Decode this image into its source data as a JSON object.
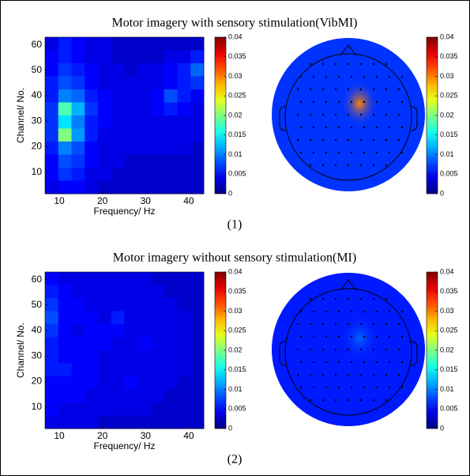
{
  "chart_data": [
    {
      "type": "heatmap",
      "title": "Motor imagery with sensory stimulation(VibMI)",
      "caption": "(1)",
      "x_label": "Frequency/ Hz",
      "y_label": "Channel/ No.",
      "xlim": [
        6.7,
        43.5
      ],
      "ylim": [
        1.5,
        63
      ],
      "xticks": [
        10,
        20,
        30,
        40
      ],
      "yticks": [
        10,
        20,
        30,
        40,
        50,
        60
      ],
      "values": [
        [
          0.004,
          0.006,
          0.005,
          0.004,
          0.004,
          0.003,
          0.003,
          0.003,
          0.003,
          0.003,
          0.003,
          0.003
        ],
        [
          0.005,
          0.006,
          0.005,
          0.004,
          0.004,
          0.003,
          0.003,
          0.003,
          0.003,
          0.004,
          0.004,
          0.006
        ],
        [
          0.005,
          0.007,
          0.006,
          0.005,
          0.004,
          0.004,
          0.003,
          0.004,
          0.004,
          0.005,
          0.006,
          0.009
        ],
        [
          0.006,
          0.008,
          0.007,
          0.005,
          0.004,
          0.004,
          0.004,
          0.004,
          0.004,
          0.005,
          0.006,
          0.007
        ],
        [
          0.006,
          0.01,
          0.009,
          0.006,
          0.005,
          0.004,
          0.004,
          0.004,
          0.005,
          0.008,
          0.006,
          0.005
        ],
        [
          0.007,
          0.018,
          0.012,
          0.007,
          0.005,
          0.004,
          0.004,
          0.004,
          0.005,
          0.006,
          0.005,
          0.004
        ],
        [
          0.007,
          0.014,
          0.01,
          0.006,
          0.005,
          0.004,
          0.004,
          0.004,
          0.004,
          0.004,
          0.004,
          0.004
        ],
        [
          0.007,
          0.02,
          0.011,
          0.006,
          0.004,
          0.004,
          0.004,
          0.004,
          0.004,
          0.004,
          0.004,
          0.004
        ],
        [
          0.006,
          0.01,
          0.008,
          0.005,
          0.004,
          0.004,
          0.004,
          0.004,
          0.004,
          0.004,
          0.004,
          0.003
        ],
        [
          0.005,
          0.008,
          0.007,
          0.005,
          0.004,
          0.004,
          0.003,
          0.003,
          0.003,
          0.003,
          0.003,
          0.003
        ],
        [
          0.005,
          0.007,
          0.006,
          0.004,
          0.004,
          0.003,
          0.003,
          0.003,
          0.003,
          0.003,
          0.003,
          0.003
        ],
        [
          0.004,
          0.005,
          0.005,
          0.004,
          0.003,
          0.003,
          0.003,
          0.003,
          0.003,
          0.003,
          0.003,
          0.003
        ]
      ],
      "colorbar": {
        "lim": [
          0,
          0.04
        ],
        "ticks": [
          0,
          0.005,
          0.01,
          0.015,
          0.02,
          0.025,
          0.03,
          0.035,
          0.04
        ]
      }
    },
    {
      "type": "topoplot",
      "base": 0.007,
      "peak": 0.03,
      "colorbar": {
        "lim": [
          0,
          0.04
        ],
        "ticks": [
          0,
          0.005,
          0.01,
          0.015,
          0.02,
          0.025,
          0.03,
          0.035,
          0.04
        ]
      }
    },
    {
      "type": "heatmap",
      "title": "Motor imagery without sensory stimulation(MI)",
      "caption": "(2)",
      "x_label": "Frequency/ Hz",
      "y_label": "Channel/ No.",
      "xlim": [
        6.7,
        43.5
      ],
      "ylim": [
        1.5,
        63
      ],
      "xticks": [
        10,
        20,
        30,
        40
      ],
      "yticks": [
        10,
        20,
        30,
        40,
        50,
        60
      ],
      "values": [
        [
          0.005,
          0.004,
          0.004,
          0.004,
          0.004,
          0.004,
          0.004,
          0.004,
          0.003,
          0.003,
          0.003,
          0.003
        ],
        [
          0.006,
          0.005,
          0.004,
          0.004,
          0.004,
          0.004,
          0.004,
          0.004,
          0.004,
          0.003,
          0.003,
          0.003
        ],
        [
          0.007,
          0.005,
          0.005,
          0.004,
          0.004,
          0.004,
          0.004,
          0.004,
          0.004,
          0.004,
          0.003,
          0.003
        ],
        [
          0.008,
          0.005,
          0.005,
          0.005,
          0.004,
          0.006,
          0.004,
          0.004,
          0.004,
          0.004,
          0.004,
          0.003
        ],
        [
          0.007,
          0.005,
          0.004,
          0.005,
          0.005,
          0.005,
          0.004,
          0.004,
          0.004,
          0.004,
          0.004,
          0.003
        ],
        [
          0.006,
          0.005,
          0.005,
          0.005,
          0.005,
          0.004,
          0.004,
          0.005,
          0.004,
          0.004,
          0.004,
          0.003
        ],
        [
          0.006,
          0.005,
          0.005,
          0.005,
          0.004,
          0.004,
          0.004,
          0.004,
          0.004,
          0.004,
          0.004,
          0.003
        ],
        [
          0.006,
          0.006,
          0.005,
          0.005,
          0.004,
          0.004,
          0.004,
          0.004,
          0.004,
          0.004,
          0.004,
          0.003
        ],
        [
          0.005,
          0.005,
          0.005,
          0.005,
          0.004,
          0.004,
          0.005,
          0.004,
          0.004,
          0.004,
          0.003,
          0.003
        ],
        [
          0.005,
          0.005,
          0.005,
          0.004,
          0.004,
          0.004,
          0.004,
          0.004,
          0.004,
          0.003,
          0.003,
          0.003
        ],
        [
          0.005,
          0.004,
          0.004,
          0.004,
          0.004,
          0.004,
          0.004,
          0.004,
          0.003,
          0.003,
          0.003,
          0.003
        ],
        [
          0.004,
          0.004,
          0.004,
          0.004,
          0.003,
          0.003,
          0.003,
          0.003,
          0.003,
          0.003,
          0.003,
          0.003
        ]
      ],
      "colorbar": {
        "lim": [
          0,
          0.04
        ],
        "ticks": [
          0,
          0.005,
          0.01,
          0.015,
          0.02,
          0.025,
          0.03,
          0.035,
          0.04
        ]
      }
    },
    {
      "type": "topoplot",
      "base": 0.006,
      "peak": 0.009,
      "colorbar": {
        "lim": [
          0,
          0.04
        ],
        "ticks": [
          0,
          0.005,
          0.01,
          0.015,
          0.02,
          0.025,
          0.03,
          0.035,
          0.04
        ]
      }
    }
  ]
}
